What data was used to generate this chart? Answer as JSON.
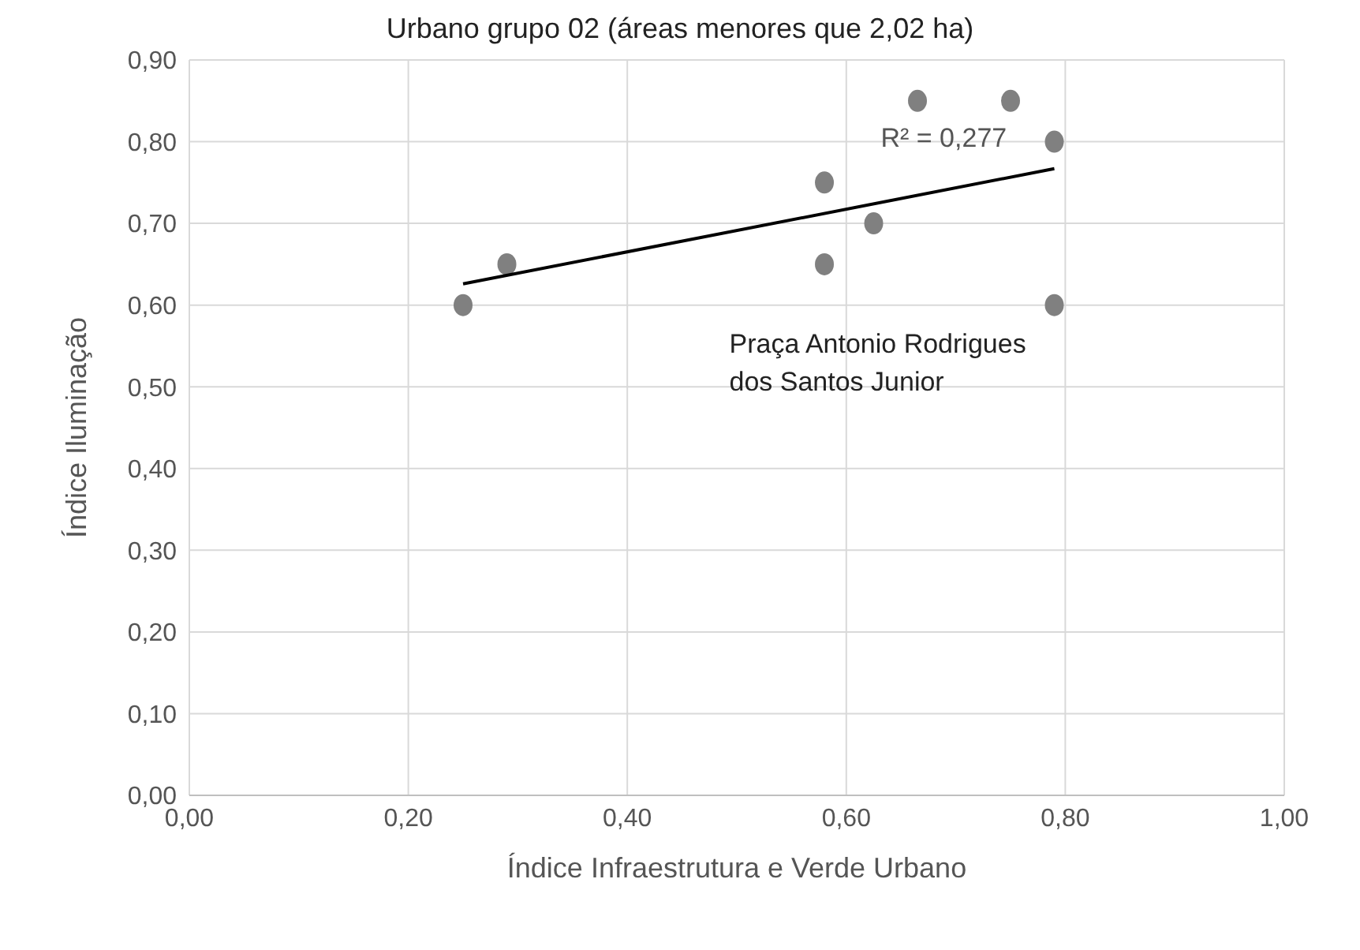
{
  "chart_data": {
    "type": "scatter",
    "title": "Urbano grupo 02 (áreas menores que 2,02 ha)",
    "xlabel": "Índice Infraestrutura  e Verde Urbano",
    "ylabel": "Índice Iluminação",
    "series": [
      {
        "type": "scatter",
        "color": "#808080",
        "x": [
          0.25,
          0.29,
          0.58,
          0.58,
          0.625,
          0.665,
          0.75,
          0.79,
          0.79
        ],
        "values": [
          0.6,
          0.65,
          0.75,
          0.65,
          0.7,
          0.85,
          0.85,
          0.8,
          0.6
        ],
        "marker": "circle"
      },
      {
        "type": "line",
        "color": "#000000",
        "x": [
          0.25,
          0.79
        ],
        "values": [
          0.626,
          0.767
        ],
        "marker": "none"
      }
    ],
    "annotations": [
      "R² = 0,277",
      {
        "text": "Praça Antonio Rodrigues dos Santos Junior",
        "x": 0.79,
        "y": 0.6
      }
    ],
    "xlim": [
      0,
      1
    ],
    "xticks": [
      {
        "value": 0,
        "label": "0,00"
      },
      {
        "value": 0.2,
        "label": "0,20"
      },
      {
        "value": 0.4,
        "label": "0,40"
      },
      {
        "value": 0.6,
        "label": "0,60"
      },
      {
        "value": 0.8,
        "label": "0,80"
      },
      {
        "value": 1,
        "label": "1,00"
      }
    ],
    "ylim": [
      0,
      0.9
    ],
    "yticks": [
      {
        "value": 0,
        "label": "0,00"
      },
      {
        "value": 0.1,
        "label": "0,10"
      },
      {
        "value": 0.2,
        "label": "0,20"
      },
      {
        "value": 0.3,
        "label": "0,30"
      },
      {
        "value": 0.4,
        "label": "0,40"
      },
      {
        "value": 0.5,
        "label": "0,50"
      },
      {
        "value": 0.6,
        "label": "0,60"
      },
      {
        "value": 0.7,
        "label": "0,70"
      },
      {
        "value": 0.8,
        "label": "0,80"
      },
      {
        "value": 0.9,
        "label": "0,90"
      }
    ],
    "grid": true,
    "legend": false
  }
}
